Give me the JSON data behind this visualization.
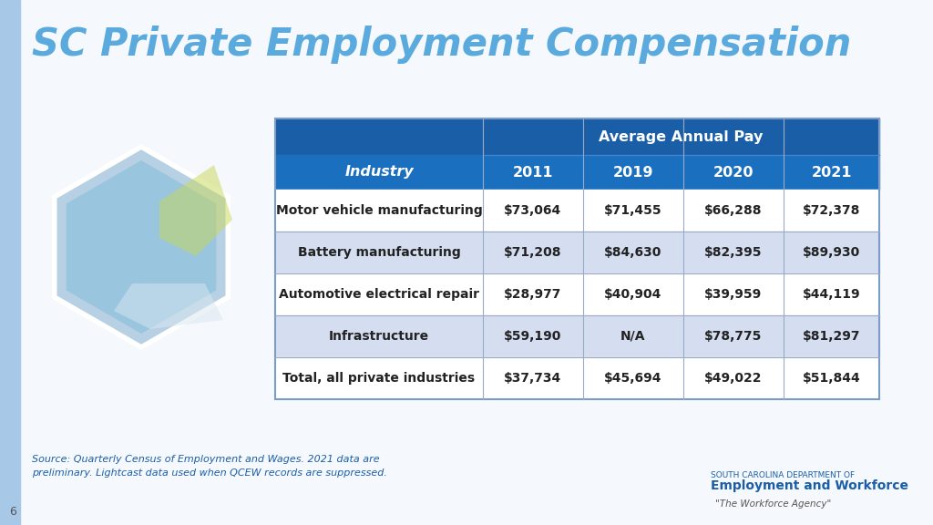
{
  "title": "SC Private Employment Compensation",
  "title_color": "#5BAADE",
  "bg_color": "#F5F8FC",
  "table_header_bg": "#1B5EA8",
  "table_subheader_bg": "#1B6FBF",
  "table_row_bg_odd": "#FFFFFF",
  "table_row_bg_even": "#D4DEF0",
  "table_border_color": "#9AAAC5",
  "left_bar_color": "#A8C8E8",
  "col_headers": [
    "Industry",
    "2011",
    "2019",
    "2020",
    "2021"
  ],
  "avg_annual_pay_label": "Average Annual Pay",
  "rows": [
    [
      "Motor vehicle manufacturing",
      "$73,064",
      "$71,455",
      "$66,288",
      "$72,378"
    ],
    [
      "Battery manufacturing",
      "$71,208",
      "$84,630",
      "$82,395",
      "$89,930"
    ],
    [
      "Automotive electrical repair",
      "$28,977",
      "$40,904",
      "$39,959",
      "$44,119"
    ],
    [
      "Infrastructure",
      "$59,190",
      "N/A",
      "$78,775",
      "$81,297"
    ],
    [
      "Total, all private industries",
      "$37,734",
      "$45,694",
      "$49,022",
      "$51,844"
    ]
  ],
  "source_text": "Source: Quarterly Census of Employment and Wages. 2021 data are\npreliminary. Lightcast data used when QCEW records are suppressed.",
  "page_number": "6",
  "footer_org_line1": "SOUTH CAROLINA DEPARTMENT OF",
  "footer_org_line2": "Employment and Workforce",
  "footer_tagline": "\"The Workforce Agency\""
}
